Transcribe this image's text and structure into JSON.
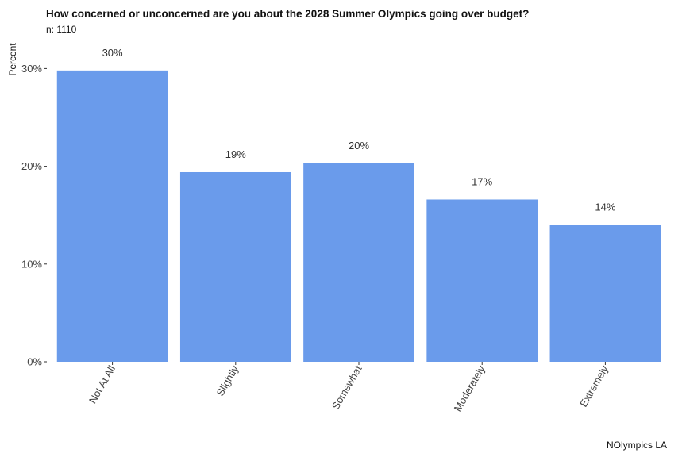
{
  "chart_data": {
    "type": "bar",
    "title": "How concerned or unconcerned are you about the 2028 Summer Olympics going over budget?",
    "subtitle": "n: 1110",
    "ylabel": "Percent",
    "xlabel": "",
    "caption": "NOlympics LA",
    "categories": [
      "Not At All",
      "Slightly",
      "Somewhat",
      "Moderately",
      "Extremely"
    ],
    "values": [
      29.8,
      19.4,
      20.3,
      16.6,
      14.0
    ],
    "data_labels": [
      "30%",
      "19%",
      "20%",
      "17%",
      "14%"
    ],
    "ylim": [
      0,
      32
    ],
    "yticks": [
      0,
      10,
      20,
      30
    ],
    "ytick_labels": [
      "0%",
      "10%",
      "20%",
      "30%"
    ],
    "bar_color": "#6A9BEB",
    "grid": false,
    "legend": "none"
  }
}
